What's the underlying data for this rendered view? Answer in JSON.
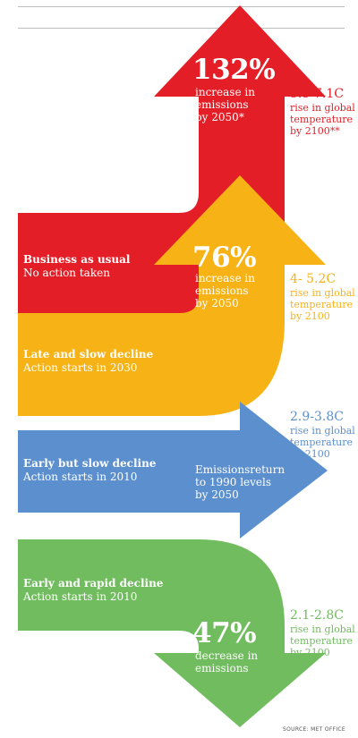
{
  "colors": {
    "business": "#e31e26",
    "late": "#f7b215",
    "early_slow": "#5b8fce",
    "early_rapid": "#70bc5e",
    "rule": "#bdbdbd",
    "source": "#555555"
  },
  "scenarios": [
    {
      "title": "Business as usual",
      "subtitle": "No action taken",
      "big": "132%",
      "desc": [
        "increase in",
        "emissions",
        "by 2050*"
      ],
      "range": "5.5-7.1C",
      "range_desc": [
        "rise in global",
        "temperature",
        "by 2100**"
      ]
    },
    {
      "title": "Late and slow decline",
      "subtitle": "Action starts in 2030",
      "big": "76%",
      "desc": [
        "increase in",
        "emissions",
        "by 2050"
      ],
      "range": "4- 5.2C",
      "range_desc": [
        "rise in global",
        "temperature",
        "by 2100"
      ]
    },
    {
      "title": "Early but slow decline",
      "subtitle": "Action starts in 2010",
      "desc": [
        "Emissionsreturn",
        "to 1990 levels",
        "by 2050"
      ],
      "range": "2.9-3.8C",
      "range_desc": [
        "rise in global",
        "temperature",
        "by 2100"
      ]
    },
    {
      "title": "Early and rapid decline",
      "subtitle": "Action starts in 2010",
      "big": "47%",
      "desc": [
        "decrease in",
        "emissions"
      ],
      "range": "2.1-2.8C",
      "range_desc": [
        "rise in global",
        "temperature",
        "by 2100"
      ]
    }
  ],
  "source": "SOURCE: MET OFFICE"
}
